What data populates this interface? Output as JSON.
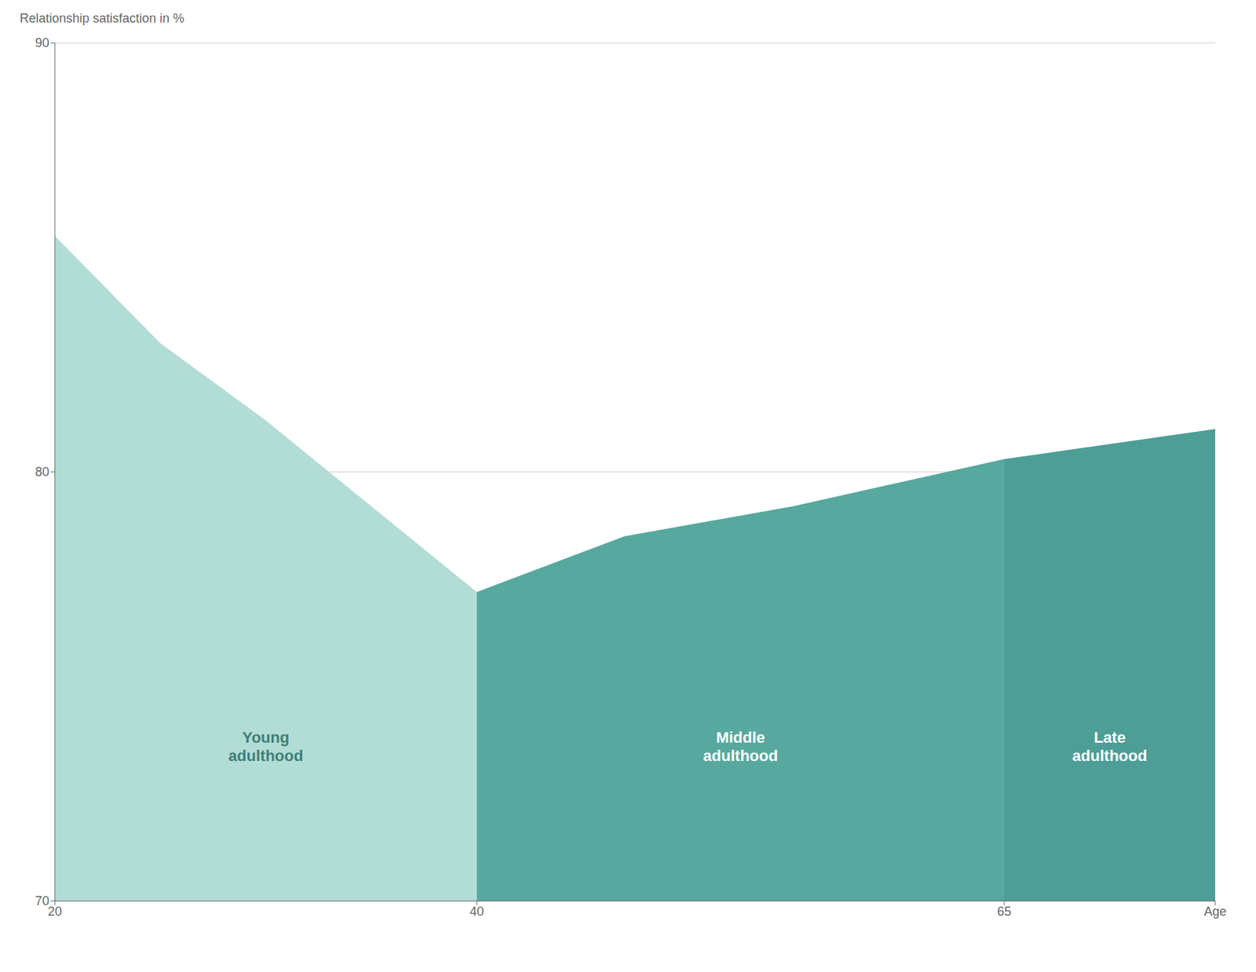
{
  "chart_data": {
    "type": "area",
    "y_label": "Relationship satisfaction in %",
    "x": [
      20,
      25,
      30,
      40,
      47,
      55,
      65,
      75
    ],
    "values": [
      85.5,
      83.0,
      81.2,
      77.2,
      78.5,
      79.2,
      80.3,
      81.0
    ],
    "xlim": [
      20,
      75
    ],
    "xticks": [
      20,
      40,
      65,
      {
        "value": 75,
        "label": "Age"
      }
    ],
    "ylim": [
      70,
      90
    ],
    "yticks": [
      70,
      80,
      90
    ],
    "grid": true,
    "regions": [
      {
        "from": 20,
        "to": 40,
        "color": "#b2ddd6"
      },
      {
        "from": 40,
        "to": 65,
        "color": "#57a89e"
      },
      {
        "from": 65,
        "to": 75,
        "color": "#4d9e96"
      }
    ],
    "annotations": [
      {
        "text": "Young\nadulthood",
        "x": 30,
        "y": 73.2,
        "color": "#3d7f78"
      },
      {
        "text": "Middle\nadulthood",
        "x": 52.5,
        "y": 73.2,
        "color": "#ffffff"
      },
      {
        "text": "Late\nadulthood",
        "x": 70,
        "y": 73.2,
        "color": "#ffffff"
      }
    ]
  }
}
